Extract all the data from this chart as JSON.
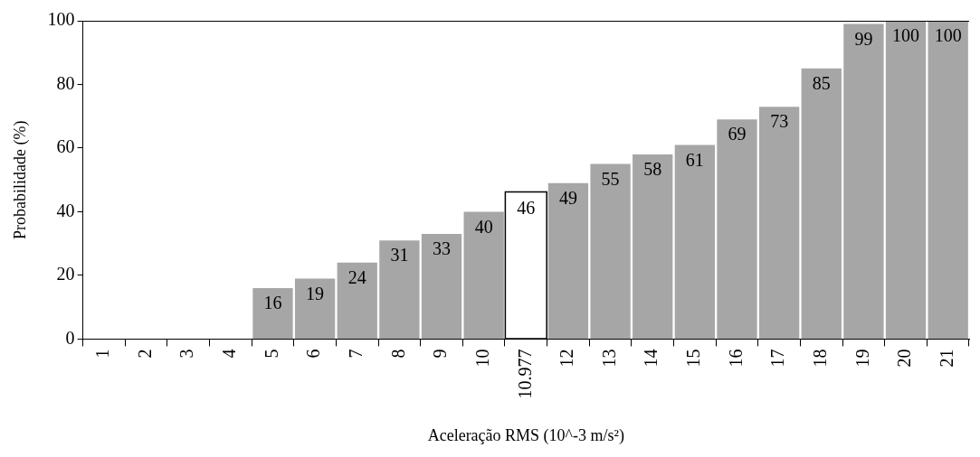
{
  "chart_data": {
    "type": "bar",
    "xlabel": "Aceleração RMS (10^-3 m/s²)",
    "ylabel": "Probabilidade (%)",
    "categories": [
      "1",
      "2",
      "3",
      "4",
      "5",
      "6",
      "7",
      "8",
      "9",
      "10",
      "10.977",
      "12",
      "13",
      "14",
      "15",
      "16",
      "17",
      "18",
      "19",
      "20",
      "21"
    ],
    "values": [
      0,
      0,
      0,
      0,
      16,
      19,
      24,
      31,
      33,
      40,
      46,
      49,
      55,
      58,
      61,
      69,
      73,
      85,
      99,
      100,
      100
    ],
    "colors": [
      "#a6a6a6",
      "#a6a6a6",
      "#a6a6a6",
      "#a6a6a6",
      "#a6a6a6",
      "#a6a6a6",
      "#a6a6a6",
      "#a6a6a6",
      "#a6a6a6",
      "#a6a6a6",
      "#ffffff",
      "#a6a6a6",
      "#a6a6a6",
      "#a6a6a6",
      "#a6a6a6",
      "#a6a6a6",
      "#a6a6a6",
      "#a6a6a6",
      "#a6a6a6",
      "#a6a6a6",
      "#a6a6a6"
    ],
    "value_labels": [
      null,
      null,
      null,
      null,
      "16",
      "19",
      "24",
      "31",
      "33",
      "40",
      "46",
      "49",
      "55",
      "58",
      "61",
      "69",
      "73",
      "85",
      "99",
      "100",
      "100"
    ],
    "ylim": [
      0,
      100
    ],
    "yticks": [
      0,
      20,
      40,
      60,
      80,
      100
    ],
    "grid": false,
    "legend": false
  }
}
